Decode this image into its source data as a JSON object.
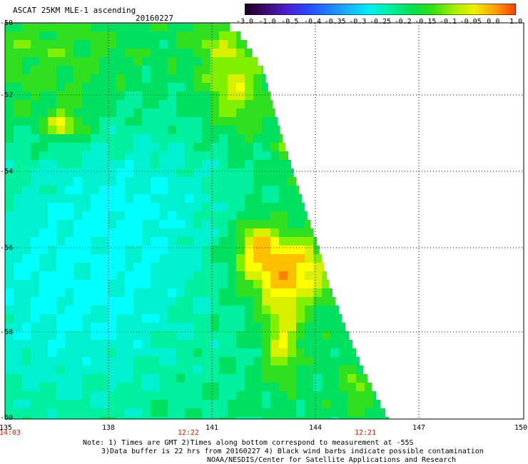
{
  "header": {
    "title": "ASCAT 25KM MLE-1 ascending",
    "date": "20160227"
  },
  "colorbar": {
    "labels": [
      "-3.0",
      "-1.0",
      "-0.5",
      "-0.4",
      "-0.35",
      "-0.3",
      "-0.25",
      "-0.2",
      "-0.15",
      "-0.1",
      "-0.05",
      "0.0",
      "1.0"
    ],
    "colors": [
      "#1a0020",
      "#3d0a6e",
      "#4a1fd0",
      "#2a46ff",
      "#1e7dff",
      "#15b6ff",
      "#00f0f0",
      "#00f0a0",
      "#00e050",
      "#30e010",
      "#a0f000",
      "#f0f000",
      "#ffa000",
      "#ff3c00"
    ]
  },
  "axes": {
    "lat_labels": [
      "-50",
      "-52",
      "-54",
      "-56",
      "-58",
      "-60"
    ],
    "lon_labels": [
      "135",
      "138",
      "141",
      "144",
      "147",
      "150"
    ],
    "time_labels": [
      "14:03",
      "12:22",
      "12:21"
    ]
  },
  "notes": {
    "line1": "Note: 1) Times are GMT 2)Times along bottom correspond to measurement at -55S",
    "line2": "3)Data buffer is 22 hrs from 20160227 4) Black wind barbs indicate possible contamination",
    "line3": "NOAA/NESDIS/Center for Satellite Applications and Research"
  }
}
